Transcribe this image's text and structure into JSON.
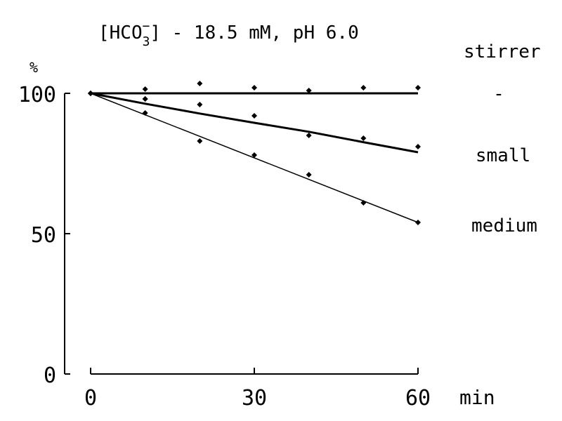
{
  "chart_data": {
    "type": "scatter",
    "title_prefix": "[HCO",
    "title_sub": "3",
    "title_sup": "−",
    "title_suffix": "] - 18.5 mM, pH 6.0",
    "ylabel": "%",
    "xlabel": "min",
    "legend_title": "stirrer",
    "xlim": [
      0,
      60
    ],
    "ylim": [
      0,
      100
    ],
    "xticks": [
      "0",
      "30",
      "60"
    ],
    "yticks": [
      "0",
      "50",
      "100"
    ],
    "grid": false,
    "series": [
      {
        "name": "-",
        "x": [
          0,
          10,
          20,
          30,
          40,
          50,
          60
        ],
        "y": [
          100,
          101.5,
          103.5,
          102,
          101,
          102,
          102
        ],
        "fit": [
          [
            0,
            100
          ],
          [
            60,
            100
          ]
        ],
        "fit_width": 3
      },
      {
        "name": "small",
        "x": [
          0,
          10,
          10,
          20,
          30,
          40,
          50,
          60
        ],
        "y": [
          100,
          98,
          98,
          96,
          92,
          85,
          84,
          81
        ],
        "fit": [
          [
            0,
            100
          ],
          [
            10,
            96.3
          ],
          [
            20,
            92.8
          ],
          [
            30,
            89.5
          ],
          [
            40,
            86.3
          ],
          [
            50,
            82.6
          ],
          [
            60,
            79
          ]
        ],
        "fit_width": 3
      },
      {
        "name": "medium",
        "x": [
          0,
          10,
          20,
          30,
          40,
          50,
          60
        ],
        "y": [
          100,
          93,
          83,
          78,
          71,
          61,
          54
        ],
        "fit": [
          [
            0,
            100
          ],
          [
            60,
            54
          ]
        ],
        "fit_width": 1.5
      }
    ],
    "label_y": [
      100,
      78,
      53
    ]
  }
}
